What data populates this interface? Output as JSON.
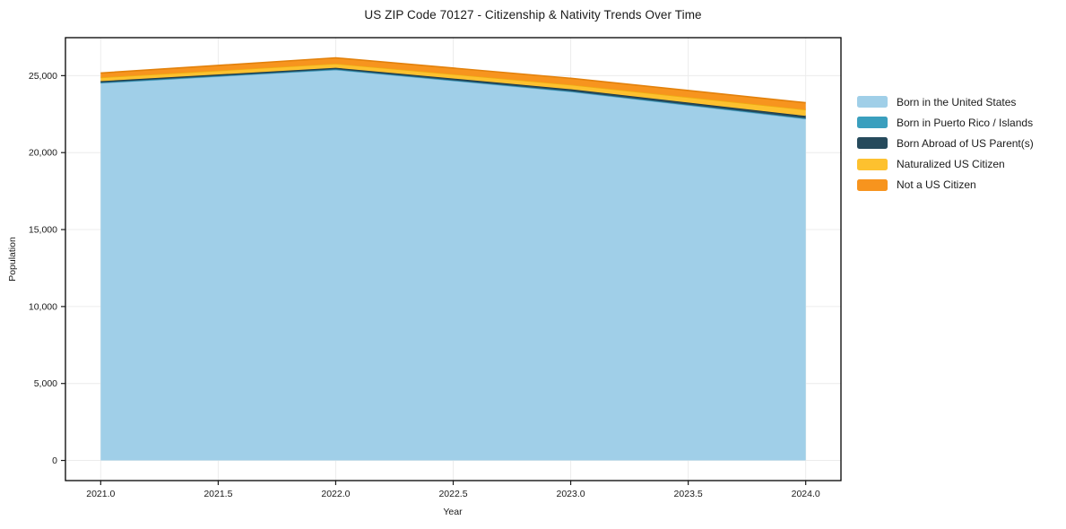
{
  "chart_data": {
    "type": "area",
    "stacked": true,
    "title": "US ZIP Code 70127 - Citizenship & Nativity Trends Over Time",
    "xlabel": "Year",
    "ylabel": "Population",
    "x": [
      2021,
      2022,
      2023,
      2024
    ],
    "series": [
      {
        "name": "Born in the United States",
        "color": "#A0CFE8",
        "line_color": "#7EB9DB",
        "values": [
          24520,
          25380,
          23960,
          22190
        ]
      },
      {
        "name": "Born in Puerto Rico / Islands",
        "color": "#3A9FBE",
        "line_color": "#2F8BA9",
        "values": [
          30,
          30,
          30,
          40
        ]
      },
      {
        "name": "Born Abroad of US Parent(s)",
        "color": "#264A5C",
        "line_color": "#1C3A49",
        "values": [
          90,
          100,
          130,
          150
        ]
      },
      {
        "name": "Naturalized US Citizen",
        "color": "#FDC12F",
        "line_color": "#EEAC12",
        "values": [
          240,
          270,
          290,
          410
        ]
      },
      {
        "name": "Not a US Citizen",
        "color": "#F7941E",
        "line_color": "#E2810C",
        "values": [
          290,
          380,
          420,
          450
        ]
      }
    ],
    "xlim": [
      2020.85,
      2024.15
    ],
    "ylim": [
      -1308,
      27468
    ],
    "xticks": [
      2021.0,
      2021.5,
      2022.0,
      2022.5,
      2023.0,
      2023.5,
      2024.0
    ],
    "xticklabels": [
      "2021.0",
      "2021.5",
      "2022.0",
      "2022.5",
      "2023.0",
      "2023.5",
      "2024.0"
    ],
    "yticks": [
      0,
      5000,
      10000,
      15000,
      20000,
      25000
    ],
    "yticklabels": [
      "0",
      "5,000",
      "10,000",
      "15,000",
      "20,000",
      "25,000"
    ],
    "grid": true,
    "grid_color": "#ECECEC",
    "spine_color": "#000000",
    "tick_color": "#1a1a1a",
    "legend_position": "right-outside"
  }
}
